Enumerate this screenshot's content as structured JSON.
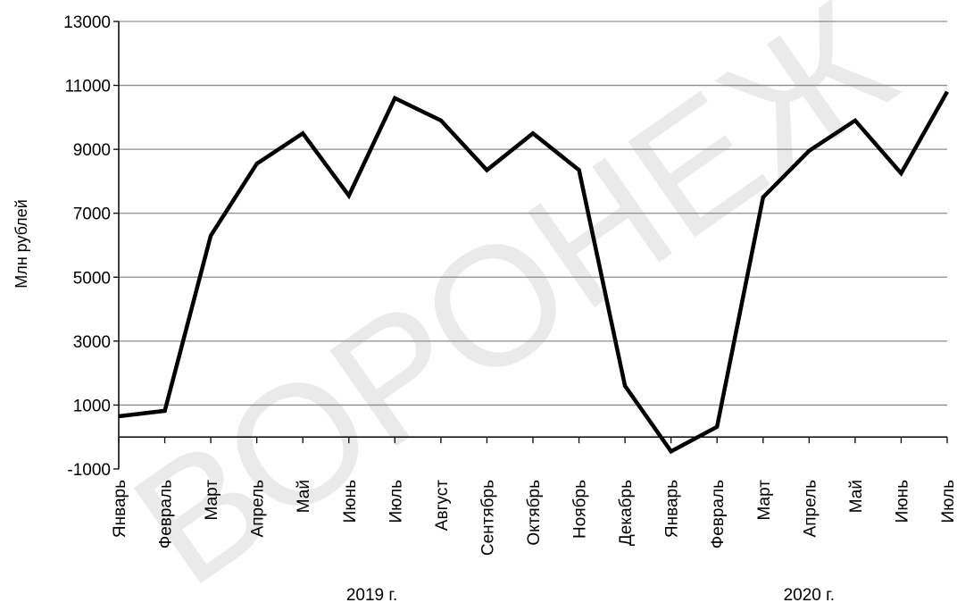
{
  "watermark": "ВОРОНЕЖ",
  "chart_data": {
    "type": "line",
    "title": "",
    "xlabel": "",
    "ylabel": "Млн рублей",
    "ylim": [
      -1000,
      13000
    ],
    "yticks": [
      -1000,
      1000,
      3000,
      5000,
      7000,
      9000,
      11000,
      13000
    ],
    "grid": true,
    "categories": [
      "Январь",
      "Февраль",
      "Март",
      "Апрель",
      "Май",
      "Июнь",
      "Июль",
      "Август",
      "Сентябрь",
      "Октябрь",
      "Ноябрь",
      "Декабрь",
      "Январь",
      "Февраль",
      "Март",
      "Апрель",
      "Май",
      "Июнь",
      "Июль"
    ],
    "groups": [
      {
        "label": "2019 г.",
        "from": 0,
        "to": 11
      },
      {
        "label": "2020 г.",
        "from": 12,
        "to": 18
      }
    ],
    "series": [
      {
        "values": [
          650,
          820,
          6300,
          8550,
          9500,
          7550,
          10600,
          9900,
          8350,
          9500,
          8350,
          1600,
          -450,
          320,
          7500,
          8950,
          9900,
          8250,
          10800
        ]
      }
    ],
    "line_color": "#000000",
    "grid_color": "#8c8c8c"
  }
}
